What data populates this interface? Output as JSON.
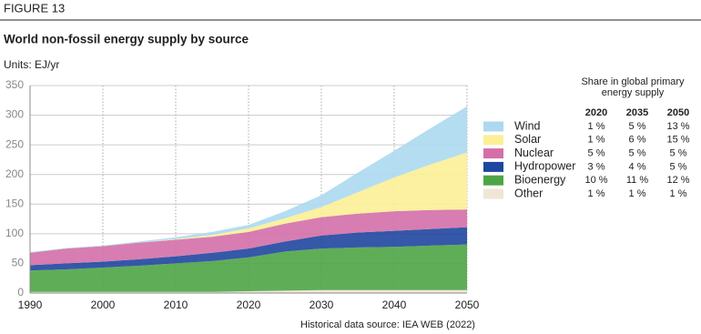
{
  "figure_label": "FIGURE 13",
  "chart_data": {
    "type": "stacked-area",
    "title": "World non-fossil energy supply by source",
    "y_label": "Units: EJ/yr",
    "source": "Historical data source: IEA WEB (2022)",
    "x": [
      1990,
      1995,
      2000,
      2005,
      2010,
      2015,
      2020,
      2025,
      2030,
      2035,
      2040,
      2045,
      2050
    ],
    "xlim": [
      1990,
      2050
    ],
    "xticks": [
      1990,
      2000,
      2010,
      2020,
      2030,
      2040,
      2050
    ],
    "ylim": [
      0,
      350
    ],
    "yticks": [
      0,
      50,
      100,
      150,
      200,
      250,
      300,
      350
    ],
    "grid": true,
    "series": [
      {
        "name": "Wind",
        "color": "#acd9ef",
        "values": [
          1,
          1,
          1,
          2,
          3,
          5,
          6,
          12,
          20,
          33,
          45,
          61,
          78
        ]
      },
      {
        "name": "Solar",
        "color": "#fbf096",
        "values": [
          0,
          0,
          0,
          0,
          1,
          3,
          6,
          9,
          17,
          36,
          57,
          77,
          96
        ]
      },
      {
        "name": "Nuclear",
        "color": "#d46fa9",
        "values": [
          21,
          25,
          26,
          28,
          28,
          27,
          28,
          30,
          31,
          32,
          33,
          32,
          30
        ]
      },
      {
        "name": "Hydropower",
        "color": "#1f46a0",
        "values": [
          9,
          10,
          10,
          11,
          12,
          14,
          15,
          17,
          22,
          25,
          27,
          28,
          29
        ]
      },
      {
        "name": "Bioenergy",
        "color": "#4ea545",
        "values": [
          36,
          38,
          41,
          44,
          48,
          52,
          57,
          66,
          70,
          72,
          73,
          75,
          77
        ]
      },
      {
        "name": "Other",
        "color": "#f0e6d6",
        "values": [
          2,
          2,
          2,
          2,
          2,
          2,
          3,
          4,
          5,
          5,
          5,
          5,
          5
        ]
      }
    ],
    "share_table": {
      "title": "Share in global primary energy supply",
      "columns": [
        "2020",
        "2035",
        "2050"
      ],
      "rows": [
        [
          "1 %",
          "5 %",
          "13 %"
        ],
        [
          "1 %",
          "6 %",
          "15 %"
        ],
        [
          "5 %",
          "5 %",
          "5 %"
        ],
        [
          "3 %",
          "4 %",
          "5 %"
        ],
        [
          "10 %",
          "11 %",
          "12 %"
        ],
        [
          "1 %",
          "1 %",
          "1 %"
        ]
      ]
    }
  }
}
